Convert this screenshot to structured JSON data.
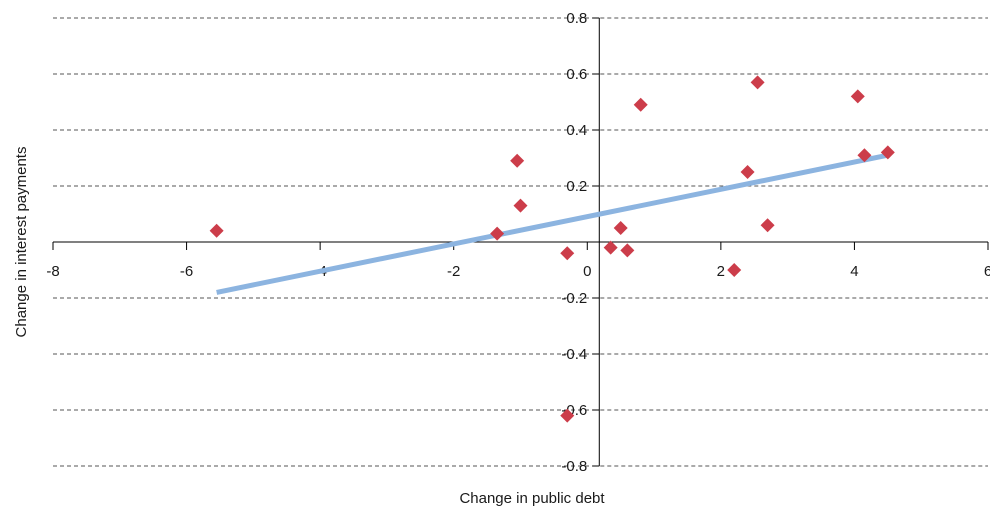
{
  "chart_data": {
    "type": "scatter",
    "title": "",
    "xlabel": "Change in public debt",
    "ylabel": "Change in interest payments",
    "xlim": [
      -8,
      6
    ],
    "ylim": [
      -0.8,
      0.8
    ],
    "x_ticks": [
      -8,
      -6,
      -4,
      -2,
      0,
      2,
      4,
      6
    ],
    "y_ticks": [
      -0.8,
      -0.6,
      -0.4,
      -0.2,
      0.2,
      0.4,
      0.6,
      0.8
    ],
    "x_tick_labels": [
      "-8",
      "-6",
      "-4",
      "-2",
      "0",
      "2",
      "4",
      "6"
    ],
    "y_tick_labels": [
      "-0.8",
      "-0.6",
      "-0.4",
      "-0.2",
      "0.2",
      "0.4",
      "0.6",
      "0.8"
    ],
    "grid": "horizontal dashed",
    "series": [
      {
        "type": "scatter",
        "marker": "diamond",
        "color": "#cc3d4a",
        "points": [
          {
            "x": -5.55,
            "y": 0.04
          },
          {
            "x": -1.35,
            "y": 0.03
          },
          {
            "x": -1.0,
            "y": 0.13
          },
          {
            "x": -1.05,
            "y": 0.29
          },
          {
            "x": -0.3,
            "y": -0.04
          },
          {
            "x": -0.3,
            "y": -0.62
          },
          {
            "x": 0.35,
            "y": -0.02
          },
          {
            "x": 0.5,
            "y": 0.05
          },
          {
            "x": 0.6,
            "y": -0.03
          },
          {
            "x": 0.8,
            "y": 0.49
          },
          {
            "x": 2.2,
            "y": -0.1
          },
          {
            "x": 2.4,
            "y": 0.25
          },
          {
            "x": 2.55,
            "y": 0.57
          },
          {
            "x": 2.7,
            "y": 0.06
          },
          {
            "x": 4.05,
            "y": 0.52
          },
          {
            "x": 4.15,
            "y": 0.31
          },
          {
            "x": 4.5,
            "y": 0.32
          }
        ]
      },
      {
        "type": "line",
        "role": "trendline",
        "color": "#8cb4e0",
        "points": [
          {
            "x": -5.55,
            "y": -0.18
          },
          {
            "x": 4.5,
            "y": 0.31
          }
        ]
      }
    ]
  }
}
